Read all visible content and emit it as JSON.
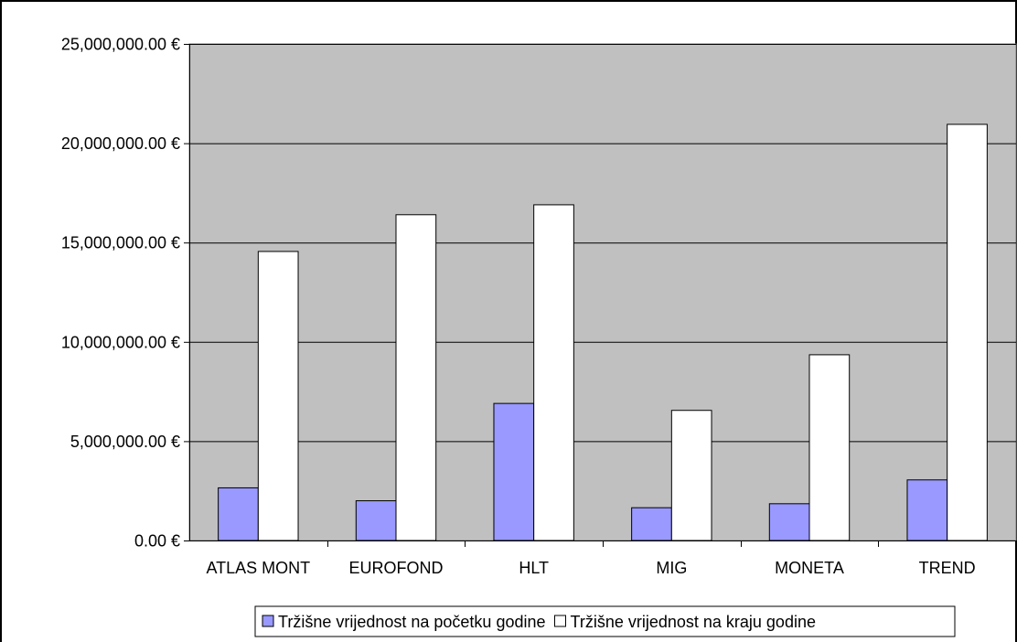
{
  "chart_data": {
    "type": "bar",
    "categories": [
      "ATLAS MONT",
      "EUROFOND",
      "HLT",
      "MIG",
      "MONETA",
      "TREND"
    ],
    "series": [
      {
        "name": "Tržišne vrijednost na početku godine",
        "color": "#9999ff",
        "values": [
          2650000,
          2000000,
          6900000,
          1650000,
          1850000,
          3050000
        ]
      },
      {
        "name": "Tržišne vrijednost na kraju godine",
        "color": "#ffffff",
        "values": [
          14550000,
          16400000,
          16900000,
          6550000,
          9350000,
          20950000
        ]
      }
    ],
    "ylim": [
      0,
      25000000
    ],
    "yticks": [
      0,
      5000000,
      10000000,
      15000000,
      20000000,
      25000000
    ],
    "ytick_labels": [
      "0.00 €",
      "5,000,000.00 €",
      "10,000,000.00 €",
      "15,000,000.00 €",
      "20,000,000.00 €",
      "25,000,000.00 €"
    ],
    "grid": true,
    "plot_background": "#c0c0c0",
    "legend_position": "bottom"
  }
}
